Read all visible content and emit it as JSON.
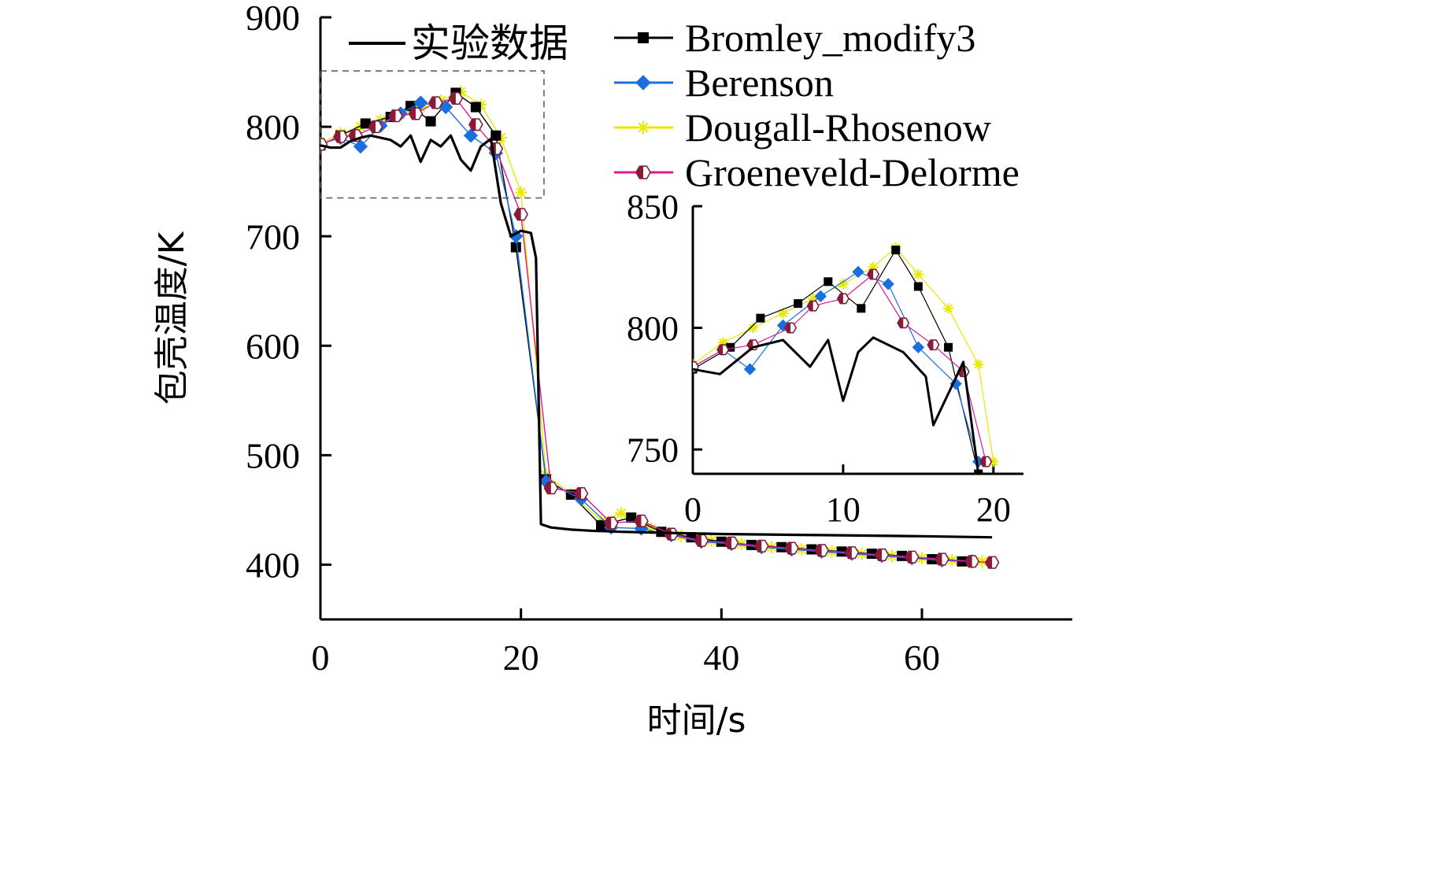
{
  "chart_data": [
    {
      "type": "line",
      "title": "",
      "xlabel": "时间/s",
      "ylabel": "包壳温度/K",
      "xlim": [
        0,
        75
      ],
      "ylim": [
        350,
        900
      ],
      "xticks": [
        0,
        20,
        40,
        60
      ],
      "yticks": [
        400,
        500,
        600,
        700,
        800,
        900
      ],
      "legend_position": "top",
      "series": [
        {
          "name": "实验数据",
          "color": "#000000",
          "marker": "none",
          "x": [
            0,
            1,
            2,
            3,
            4,
            5,
            6,
            7,
            8,
            9,
            10,
            11,
            12,
            13,
            14,
            15,
            16,
            17,
            18,
            19,
            20,
            21,
            21.5,
            22,
            23,
            25,
            27,
            30,
            35,
            40,
            50,
            60,
            67
          ],
          "y": [
            783,
            781,
            781,
            787,
            790,
            792,
            790,
            788,
            782,
            792,
            768,
            788,
            782,
            792,
            770,
            760,
            782,
            789,
            730,
            700,
            705,
            703,
            680,
            437,
            434,
            432,
            431,
            430,
            429,
            428,
            427,
            426,
            425
          ]
        },
        {
          "name": "Bromley_modify3",
          "color": "#000000",
          "marker": "square",
          "x": [
            0,
            2,
            4.5,
            7,
            9,
            11,
            13.5,
            15.5,
            17.5,
            19.5,
            22.5,
            25,
            28,
            31,
            34,
            37,
            40,
            43,
            46,
            49,
            52,
            55,
            58,
            61,
            64
          ],
          "y": [
            783,
            792,
            803,
            809,
            819,
            805,
            831,
            818,
            792,
            690,
            478,
            464,
            436,
            443,
            430,
            425,
            421,
            418,
            416,
            414,
            412,
            410,
            408,
            405,
            403
          ]
        },
        {
          "name": "Berenson",
          "color": "#1a6fdf",
          "marker": "diamond",
          "x": [
            0,
            2,
            4,
            6,
            8,
            10,
            12.5,
            15,
            17.5,
            19.5,
            22.5,
            26,
            29,
            32,
            35,
            38,
            41,
            44,
            47,
            50,
            53,
            56,
            59,
            62,
            65
          ],
          "y": [
            784,
            790,
            782,
            801,
            812,
            822,
            818,
            792,
            776,
            700,
            476,
            460,
            434,
            433,
            427,
            421,
            419,
            416,
            414,
            412,
            410,
            408,
            406,
            404,
            403
          ]
        },
        {
          "name": "Dougall-Rhosenow",
          "color": "#e8e800",
          "marker": "cross",
          "x": [
            0,
            2,
            4,
            6,
            8,
            10,
            12,
            14,
            16,
            18,
            20,
            22.5,
            25,
            28,
            30,
            33,
            36,
            39,
            42,
            45,
            48,
            51,
            54,
            57,
            60,
            63,
            66
          ],
          "y": [
            785,
            794,
            800,
            806,
            811,
            818,
            824,
            832,
            820,
            790,
            740,
            482,
            465,
            440,
            447,
            433,
            426,
            422,
            419,
            416,
            414,
            412,
            410,
            408,
            406,
            404,
            403
          ]
        },
        {
          "name": "Groeneveld-Delorme",
          "color": "#e0189a",
          "marker": "half-hexagon",
          "x": [
            0,
            2,
            3.5,
            5.5,
            7.5,
            9.5,
            11.5,
            13.5,
            15.5,
            17.5,
            20,
            23,
            26,
            29,
            32,
            35,
            38,
            41,
            44,
            47,
            50,
            53,
            56,
            59,
            62,
            65,
            67
          ],
          "y": [
            784,
            791,
            792,
            800,
            810,
            812,
            822,
            826,
            802,
            780,
            720,
            470,
            465,
            438,
            440,
            428,
            422,
            420,
            417,
            415,
            413,
            411,
            409,
            407,
            405,
            403,
            402
          ]
        }
      ]
    },
    {
      "type": "line",
      "title": "",
      "xlabel": "",
      "ylabel": "",
      "xlim": [
        0,
        22
      ],
      "ylim": [
        740,
        850
      ],
      "xticks": [
        0,
        10,
        20
      ],
      "yticks": [
        750,
        800,
        850
      ],
      "series": [
        {
          "name": "实验数据",
          "color": "#000000",
          "marker": "none",
          "x": [
            0,
            1.8,
            4,
            6,
            7.8,
            9,
            10,
            11,
            12,
            14,
            15.5,
            16,
            18,
            19
          ],
          "y": [
            783,
            781,
            792,
            795,
            784,
            795,
            770,
            790,
            796,
            790,
            780,
            760,
            786,
            740
          ]
        },
        {
          "name": "Bromley_modify3",
          "color": "#000000",
          "marker": "square",
          "x": [
            0,
            2.5,
            4.5,
            7,
            9,
            11.2,
            13.5,
            15,
            17,
            19
          ],
          "y": [
            783,
            792,
            804,
            810,
            819,
            808,
            832,
            817,
            792,
            740
          ]
        },
        {
          "name": "Berenson",
          "color": "#1a6fdf",
          "marker": "diamond",
          "x": [
            0,
            2,
            3.8,
            6,
            8.5,
            11,
            13,
            15,
            17.5,
            19
          ],
          "y": [
            784,
            791,
            783,
            801,
            813,
            823,
            818,
            792,
            777,
            745
          ]
        },
        {
          "name": "Dougall-Rhosenow",
          "color": "#e8e800",
          "marker": "cross",
          "x": [
            0,
            2,
            4,
            6,
            8,
            10,
            12,
            13.5,
            15,
            17,
            19,
            20
          ],
          "y": [
            785,
            794,
            800,
            806,
            812,
            818,
            825,
            833,
            822,
            808,
            785,
            745
          ]
        },
        {
          "name": "Groeneveld-Delorme",
          "color": "#e0189a",
          "marker": "half-hexagon",
          "x": [
            0,
            2,
            4,
            6.5,
            8,
            10,
            12,
            14,
            16,
            18,
            19.5
          ],
          "y": [
            784,
            791,
            793,
            800,
            809,
            812,
            822,
            802,
            793,
            782,
            745
          ]
        }
      ]
    }
  ]
}
